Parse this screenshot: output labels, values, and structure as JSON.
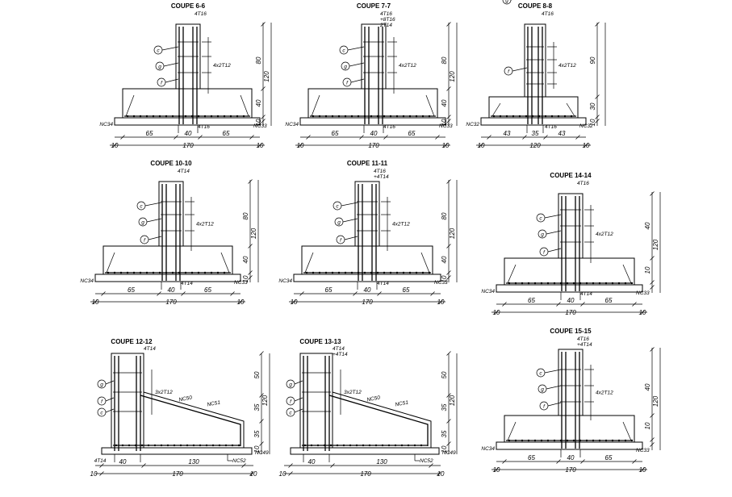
{
  "sections": [
    {
      "id": "6-6",
      "title": "COUPE 6-6",
      "kind": "T",
      "top_labels": [
        "4T16"
      ],
      "side_label": "4x2T12",
      "bottom_label": "4T16",
      "nc_left": "NC34",
      "nc_right": "NC33",
      "circles": [
        "c",
        "g",
        "f"
      ],
      "dims_horizontal": [
        "65",
        "40",
        "65"
      ],
      "dim_total": "170",
      "dim_edges": [
        "10",
        "10"
      ],
      "dims_vertical": [
        "80",
        "40",
        "10"
      ],
      "dim_vertical_total": "120"
    },
    {
      "id": "7-7",
      "title": "COUPE 7-7",
      "kind": "T",
      "top_labels": [
        "4T16",
        "+8T16",
        "2T14"
      ],
      "side_label": "4x2T12",
      "bottom_label": "4T16",
      "nc_left": "NC34",
      "nc_right": "NC33",
      "circles": [
        "c",
        "g",
        "f"
      ],
      "dims_horizontal": [
        "65",
        "40",
        "65"
      ],
      "dim_total": "170",
      "dim_edges": [
        "10",
        "10"
      ],
      "dims_vertical": [
        "80",
        "40",
        "10"
      ],
      "dim_vertical_total": "120"
    },
    {
      "id": "8-8",
      "title": "COUPE 8-8",
      "kind": "T",
      "top_labels": [
        "4T16"
      ],
      "side_label": "4x2T12",
      "bottom_label": "4T16",
      "nc_left": "NC32",
      "nc_right": "NC32",
      "circles": [
        "g",
        "f"
      ],
      "dims_horizontal": [
        "43",
        "35",
        "43"
      ],
      "dim_total": "120",
      "dim_edges": [
        "10",
        "10"
      ],
      "dims_vertical": [
        "90",
        "30",
        "10"
      ],
      "dim_vertical_total": ""
    },
    {
      "id": "10-10",
      "title": "COUPE 10-10",
      "kind": "T",
      "top_labels": [
        "4T14"
      ],
      "side_label": "4x2T12",
      "bottom_label": "4T14",
      "nc_left": "NC34",
      "nc_right": "NC33",
      "circles": [
        "c",
        "g",
        "f"
      ],
      "dims_horizontal": [
        "65",
        "40",
        "65"
      ],
      "dim_total": "170",
      "dim_edges": [
        "10",
        "10"
      ],
      "dims_vertical": [
        "80",
        "40",
        "10"
      ],
      "dim_vertical_total": "120"
    },
    {
      "id": "11-11",
      "title": "COUPE 11-11",
      "kind": "T",
      "top_labels": [
        "4T16",
        "+4T14"
      ],
      "side_label": "4x2T12",
      "bottom_label": "4T14",
      "nc_left": "NC34",
      "nc_right": "NC33",
      "circles": [
        "c",
        "g",
        "f"
      ],
      "dims_horizontal": [
        "65",
        "40",
        "65"
      ],
      "dim_total": "170",
      "dim_edges": [
        "10",
        "10"
      ],
      "dims_vertical": [
        "80",
        "40",
        "10"
      ],
      "dim_vertical_total": "120"
    },
    {
      "id": "14-14",
      "title": "COUPE 14-14",
      "kind": "T",
      "top_labels": [
        "4T16"
      ],
      "side_label": "4x2T12",
      "bottom_label": "4T14",
      "nc_left": "NC34",
      "nc_right": "NC33",
      "circles": [
        "c",
        "g",
        "f"
      ],
      "dims_horizontal": [
        "65",
        "40",
        "65"
      ],
      "dim_total": "170",
      "dim_edges": [
        "10",
        "10"
      ],
      "dims_vertical": [
        "40",
        "10"
      ],
      "dim_vertical_total": "120"
    },
    {
      "id": "12-12",
      "title": "COUPE 12-12",
      "kind": "L",
      "top_labels": [
        "4T14"
      ],
      "side_label": "3x2T12",
      "bottom_label": "4T14",
      "extra_labels": [
        "NC50",
        "NC51"
      ],
      "nc_left": "",
      "nc_right": "NC49",
      "nc_bottom": "NC52",
      "circles": [
        "g",
        "f",
        "c"
      ],
      "dims_horizontal": [
        "40",
        "130"
      ],
      "dim_total": "170",
      "dim_edges": [
        "10",
        "10"
      ],
      "dims_vertical": [
        "50",
        "35",
        "35",
        "10"
      ],
      "dim_vertical_total": "120"
    },
    {
      "id": "13-13",
      "title": "COUPE 13-13",
      "kind": "L",
      "top_labels": [
        "4T14",
        "+4T14"
      ],
      "side_label": "3x2T12",
      "bottom_label": "",
      "extra_labels": [
        "NC50",
        "NC51"
      ],
      "nc_left": "",
      "nc_right": "NC49",
      "nc_bottom": "NC52",
      "circles": [
        "g",
        "f",
        "c"
      ],
      "dims_horizontal": [
        "40",
        "130"
      ],
      "dim_total": "170",
      "dim_edges": [
        "10",
        "10"
      ],
      "dims_vertical": [
        "50",
        "35",
        "35",
        "10"
      ],
      "dim_vertical_total": "120"
    },
    {
      "id": "15-15",
      "title": "COUPE 15-15",
      "kind": "T",
      "top_labels": [
        "4T16",
        "+4T14"
      ],
      "side_label": "4x2T12",
      "bottom_label": "",
      "nc_left": "NC34",
      "nc_right": "NC33",
      "circles": [
        "c",
        "g",
        "f"
      ],
      "dims_horizontal": [
        "65",
        "40",
        "65"
      ],
      "dim_total": "170",
      "dim_edges": [
        "10",
        "10"
      ],
      "dims_vertical": [
        "40",
        "10"
      ],
      "dim_vertical_total": "120"
    }
  ]
}
